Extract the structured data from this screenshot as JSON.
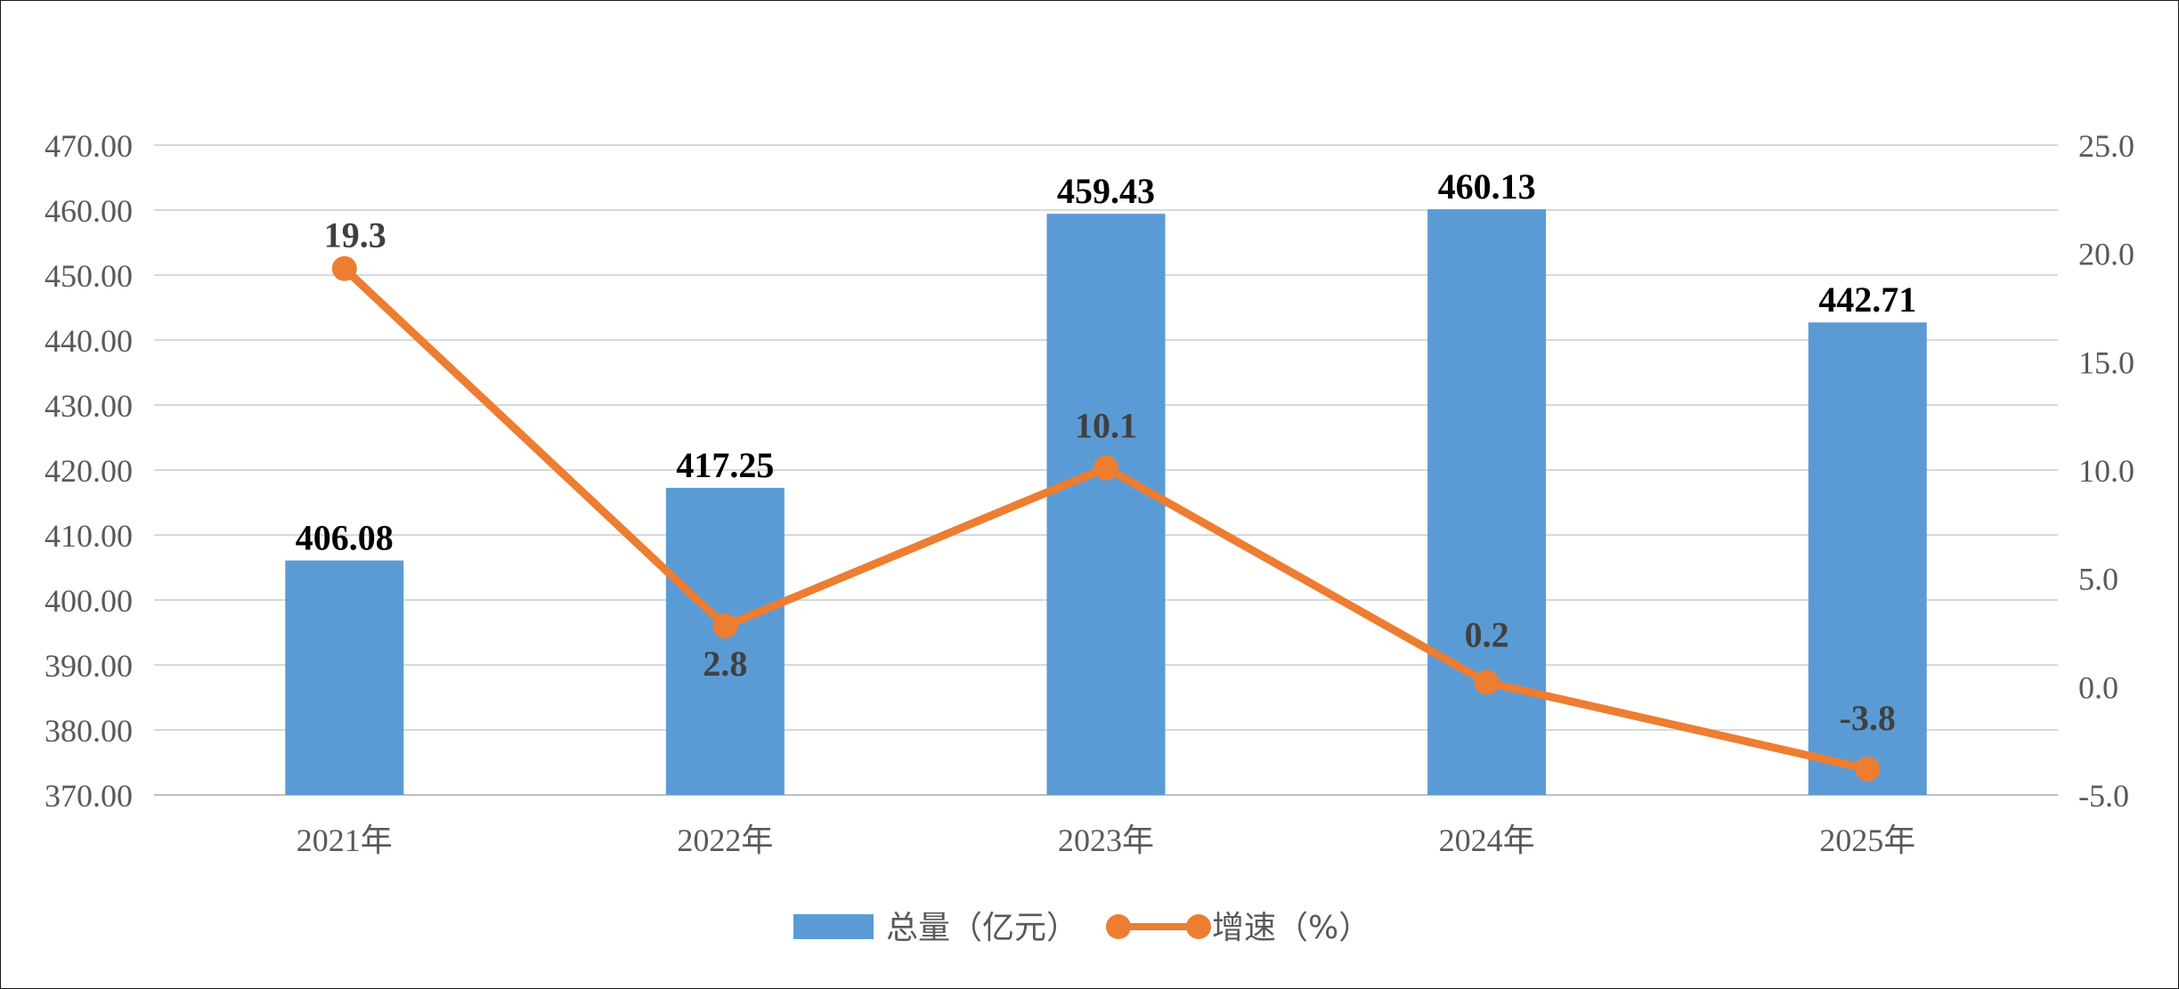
{
  "chart_data": {
    "type": "bar",
    "categories": [
      "2021年",
      "2022年",
      "2023年",
      "2024年",
      "2025年"
    ],
    "series": [
      {
        "name": "总量（亿元）",
        "type": "bar",
        "axis": "left",
        "values": [
          406.08,
          417.25,
          459.43,
          460.13,
          442.71
        ],
        "labels": [
          "406.08",
          "417.25",
          "459.43",
          "460.13",
          "442.71"
        ],
        "color": "#5B9BD5"
      },
      {
        "name": "增速（%）",
        "type": "line",
        "axis": "right",
        "values": [
          19.3,
          2.8,
          10.1,
          0.2,
          -3.8
        ],
        "labels": [
          "19.3",
          "2.8",
          "10.1",
          "0.2",
          "-3.8"
        ],
        "color": "#ED7D31"
      }
    ],
    "y_left": {
      "min": 370,
      "max": 470,
      "step": 10,
      "tick_labels": [
        "370.00",
        "380.00",
        "390.00",
        "400.00",
        "410.00",
        "420.00",
        "430.00",
        "440.00",
        "450.00",
        "460.00",
        "470.00"
      ]
    },
    "y_right": {
      "min": -5,
      "max": 25,
      "step": 5,
      "tick_labels": [
        "-5.0",
        "0.0",
        "5.0",
        "10.0",
        "15.0",
        "20.0",
        "25.0"
      ]
    },
    "grid": true,
    "legend_position": "bottom",
    "title": "",
    "xlabel": "",
    "ylabel": ""
  }
}
